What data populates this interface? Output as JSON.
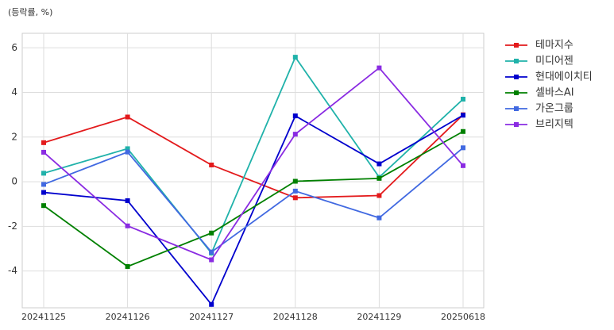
{
  "chart_data": {
    "type": "line",
    "y_label": "(등락률, %)",
    "categories": [
      "20241125",
      "20241126",
      "20241127",
      "20241128",
      "20241129",
      "20250618"
    ],
    "series": [
      {
        "name": "테마지수",
        "color": "#e31a1c",
        "values": [
          1.75,
          2.9,
          0.75,
          -0.72,
          -0.62,
          3.0
        ]
      },
      {
        "name": "미디어젠",
        "color": "#20b2aa",
        "values": [
          0.38,
          1.48,
          -3.2,
          5.58,
          0.2,
          3.7
        ]
      },
      {
        "name": "현대에이치티",
        "color": "#0000cd",
        "values": [
          -0.48,
          -0.85,
          -5.5,
          2.95,
          0.8,
          2.98
        ]
      },
      {
        "name": "셀바스AI",
        "color": "#008000",
        "values": [
          -1.07,
          -3.8,
          -2.3,
          0.02,
          0.15,
          2.25
        ]
      },
      {
        "name": "가온그룹",
        "color": "#4169e1",
        "values": [
          -0.12,
          1.33,
          -3.15,
          -0.42,
          -1.62,
          1.52
        ]
      },
      {
        "name": "브리지텍",
        "color": "#8a2be2",
        "values": [
          1.32,
          -1.98,
          -3.5,
          2.13,
          5.1,
          0.72
        ]
      }
    ],
    "ylim": [
      -5.65,
      6.65
    ],
    "yticks": [
      -4,
      -2,
      0,
      2,
      4,
      6
    ],
    "grid": true
  }
}
